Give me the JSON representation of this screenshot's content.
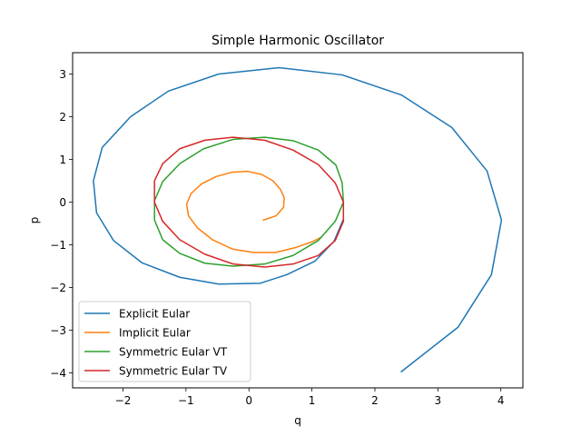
{
  "chart_data": {
    "type": "line",
    "title": "Simple Harmonic Oscillator",
    "xlabel": "q",
    "ylabel": "p",
    "xlim": [
      -2.8,
      4.35
    ],
    "ylim": [
      -4.35,
      3.5
    ],
    "xticks": [
      -2,
      -1,
      0,
      1,
      2,
      3,
      4
    ],
    "yticks": [
      -4,
      -3,
      -2,
      -1,
      0,
      1,
      2,
      3
    ],
    "xtick_labels": [
      "−2",
      "−1",
      "0",
      "1",
      "2",
      "3",
      "4"
    ],
    "ytick_labels": [
      "−4",
      "−3",
      "−2",
      "−1",
      "0",
      "1",
      "2",
      "3"
    ],
    "grid": false,
    "legend_position": "lower-left",
    "series": [
      {
        "name": "Explicit Eular",
        "color": "#1f77b4",
        "x": [
          2.42,
          3.32,
          3.85,
          4.01,
          3.78,
          3.22,
          2.42,
          1.48,
          0.48,
          -0.48,
          -1.28,
          -1.88,
          -2.33,
          -2.47,
          -2.42,
          -2.15,
          -1.7,
          -1.1,
          -0.48,
          0.18,
          0.6,
          1.05,
          1.35,
          1.5
        ],
        "y": [
          -3.97,
          -2.93,
          -1.7,
          -0.42,
          0.73,
          1.75,
          2.51,
          2.98,
          3.15,
          3.0,
          2.6,
          2.0,
          1.28,
          0.5,
          -0.25,
          -0.9,
          -1.42,
          -1.76,
          -1.92,
          -1.9,
          -1.7,
          -1.38,
          -0.92,
          -0.4
        ]
      },
      {
        "name": "Implicit Eular",
        "color": "#ff7f0e",
        "x": [
          0.23,
          0.43,
          0.55,
          0.56,
          0.5,
          0.38,
          0.2,
          -0.02,
          -0.27,
          -0.52,
          -0.75,
          -0.92,
          -0.99,
          -0.96,
          -0.82,
          -0.58,
          -0.26,
          0.08,
          0.42,
          0.75,
          1.0,
          1.15
        ],
        "y": [
          -0.42,
          -0.32,
          -0.12,
          0.1,
          0.3,
          0.5,
          0.65,
          0.72,
          0.7,
          0.6,
          0.43,
          0.2,
          -0.05,
          -0.32,
          -0.6,
          -0.88,
          -1.1,
          -1.18,
          -1.18,
          -1.06,
          -0.93,
          -0.82
        ]
      },
      {
        "name": "Symmetric Eular VT",
        "color": "#2ca02c",
        "x": [
          1.5,
          1.48,
          1.38,
          1.1,
          0.7,
          0.25,
          -0.25,
          -0.72,
          -1.1,
          -1.37,
          -1.5,
          -1.5,
          -1.37,
          -1.1,
          -0.7,
          -0.25,
          0.25,
          0.7,
          1.1,
          1.37,
          1.5
        ],
        "y": [
          0.0,
          0.45,
          0.87,
          1.22,
          1.44,
          1.52,
          1.47,
          1.25,
          0.9,
          0.48,
          0.03,
          -0.42,
          -0.88,
          -1.2,
          -1.43,
          -1.5,
          -1.45,
          -1.25,
          -0.9,
          -0.45,
          0.0
        ]
      },
      {
        "name": "Symmetric Eular TV",
        "color": "#d62728",
        "x": [
          1.5,
          1.5,
          1.37,
          1.1,
          0.7,
          0.25,
          -0.25,
          -0.7,
          -1.1,
          -1.37,
          -1.5,
          -1.5,
          -1.37,
          -1.1,
          -0.7,
          -0.25,
          0.25,
          0.7,
          1.1,
          1.37,
          1.5
        ],
        "y": [
          0.0,
          -0.45,
          -0.9,
          -1.25,
          -1.45,
          -1.52,
          -1.45,
          -1.22,
          -0.88,
          -0.45,
          0.0,
          0.5,
          0.9,
          1.25,
          1.45,
          1.52,
          1.45,
          1.22,
          0.88,
          0.45,
          0.0
        ]
      }
    ]
  }
}
